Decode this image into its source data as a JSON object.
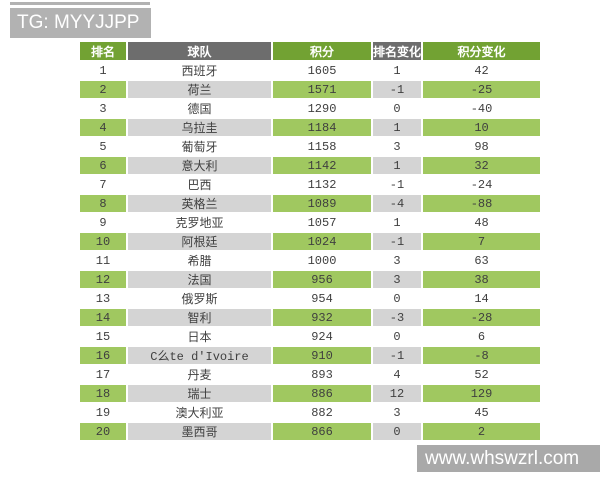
{
  "page": {
    "tg_label": "TG: MYYJJPP",
    "watermark": "www.whswzrl.com"
  },
  "colors": {
    "header_green": "#72a233",
    "header_gray": "#6d6d6d",
    "row_green": "#a0c860",
    "row_gray": "#d4d4d4",
    "label_gray": "#b2b2b2",
    "watermark_gray": "#a9a9a9"
  },
  "table": {
    "headers": [
      "排名",
      "球队",
      "积分",
      "排名变化",
      "积分变化"
    ],
    "rows": [
      {
        "rank": "1",
        "team": "西班牙",
        "points": "1605",
        "rank_change": "1",
        "points_change": "42"
      },
      {
        "rank": "2",
        "team": "荷兰",
        "points": "1571",
        "rank_change": "-1",
        "points_change": "-25"
      },
      {
        "rank": "3",
        "team": "德国",
        "points": "1290",
        "rank_change": "0",
        "points_change": "-40"
      },
      {
        "rank": "4",
        "team": "乌拉圭",
        "points": "1184",
        "rank_change": "1",
        "points_change": "10"
      },
      {
        "rank": "5",
        "team": "葡萄牙",
        "points": "1158",
        "rank_change": "3",
        "points_change": "98"
      },
      {
        "rank": "6",
        "team": "意大利",
        "points": "1142",
        "rank_change": "1",
        "points_change": "32"
      },
      {
        "rank": "7",
        "team": "巴西",
        "points": "1132",
        "rank_change": "-1",
        "points_change": "-24"
      },
      {
        "rank": "8",
        "team": "英格兰",
        "points": "1089",
        "rank_change": "-4",
        "points_change": "-88"
      },
      {
        "rank": "9",
        "team": "克罗地亚",
        "points": "1057",
        "rank_change": "1",
        "points_change": "48"
      },
      {
        "rank": "10",
        "team": "阿根廷",
        "points": "1024",
        "rank_change": "-1",
        "points_change": "7"
      },
      {
        "rank": "11",
        "team": "希腊",
        "points": "1000",
        "rank_change": "3",
        "points_change": "63"
      },
      {
        "rank": "12",
        "team": "法国",
        "points": "956",
        "rank_change": "3",
        "points_change": "38"
      },
      {
        "rank": "13",
        "team": "俄罗斯",
        "points": "954",
        "rank_change": "0",
        "points_change": "14"
      },
      {
        "rank": "14",
        "team": "智利",
        "points": "932",
        "rank_change": "-3",
        "points_change": "-28"
      },
      {
        "rank": "15",
        "team": "日本",
        "points": "924",
        "rank_change": "0",
        "points_change": "6"
      },
      {
        "rank": "16",
        "team": "C么te d'Ivoire",
        "points": "910",
        "rank_change": "-1",
        "points_change": "-8"
      },
      {
        "rank": "17",
        "team": "丹麦",
        "points": "893",
        "rank_change": "4",
        "points_change": "52"
      },
      {
        "rank": "18",
        "team": "瑞士",
        "points": "886",
        "rank_change": "12",
        "points_change": "129"
      },
      {
        "rank": "19",
        "team": "澳大利亚",
        "points": "882",
        "rank_change": "3",
        "points_change": "45"
      },
      {
        "rank": "20",
        "team": "墨西哥",
        "points": "866",
        "rank_change": "0",
        "points_change": "2"
      }
    ]
  },
  "chart_data": {
    "type": "table",
    "title": "",
    "columns": [
      "排名",
      "球队",
      "积分",
      "排名变化",
      "积分变化"
    ],
    "rows": [
      [
        "1",
        "西班牙",
        "1605",
        "1",
        "42"
      ],
      [
        "2",
        "荷兰",
        "1571",
        "-1",
        "-25"
      ],
      [
        "3",
        "德国",
        "1290",
        "0",
        "-40"
      ],
      [
        "4",
        "乌拉圭",
        "1184",
        "1",
        "10"
      ],
      [
        "5",
        "葡萄牙",
        "1158",
        "3",
        "98"
      ],
      [
        "6",
        "意大利",
        "1142",
        "1",
        "32"
      ],
      [
        "7",
        "巴西",
        "1132",
        "-1",
        "-24"
      ],
      [
        "8",
        "英格兰",
        "1089",
        "-4",
        "-88"
      ],
      [
        "9",
        "克罗地亚",
        "1057",
        "1",
        "48"
      ],
      [
        "10",
        "阿根廷",
        "1024",
        "-1",
        "7"
      ],
      [
        "11",
        "希腊",
        "1000",
        "3",
        "63"
      ],
      [
        "12",
        "法国",
        "956",
        "3",
        "38"
      ],
      [
        "13",
        "俄罗斯",
        "954",
        "0",
        "14"
      ],
      [
        "14",
        "智利",
        "932",
        "-3",
        "-28"
      ],
      [
        "15",
        "日本",
        "924",
        "0",
        "6"
      ],
      [
        "16",
        "C么te d'Ivoire",
        "910",
        "-1",
        "-8"
      ],
      [
        "17",
        "丹麦",
        "893",
        "4",
        "52"
      ],
      [
        "18",
        "瑞士",
        "886",
        "12",
        "129"
      ],
      [
        "19",
        "澳大利亚",
        "882",
        "3",
        "45"
      ],
      [
        "20",
        "墨西哥",
        "866",
        "0",
        "2"
      ]
    ]
  }
}
